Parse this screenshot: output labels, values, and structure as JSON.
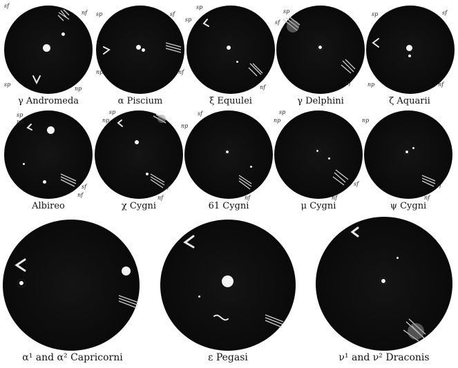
{
  "plates": [
    {
      "label": "γ Andromeda"
    },
    {
      "label": "α Piscium"
    },
    {
      "label": "ξ Equulei"
    },
    {
      "label": "γ Delphini"
    },
    {
      "label": "ζ Aquarii"
    },
    {
      "label": "Albireo"
    },
    {
      "label": "χ Cygni"
    },
    {
      "label": "61 Cygni"
    },
    {
      "label": "μ Cygni"
    },
    {
      "label": "ψ Cygni"
    },
    {
      "label": "α¹ and α² Capricorni"
    },
    {
      "label": "ε Pegasi"
    },
    {
      "label": "ν¹ and ν² Draconis"
    }
  ],
  "orientation": {
    "sp": "sp",
    "sf": "sf",
    "np": "np",
    "nf": "nf"
  }
}
